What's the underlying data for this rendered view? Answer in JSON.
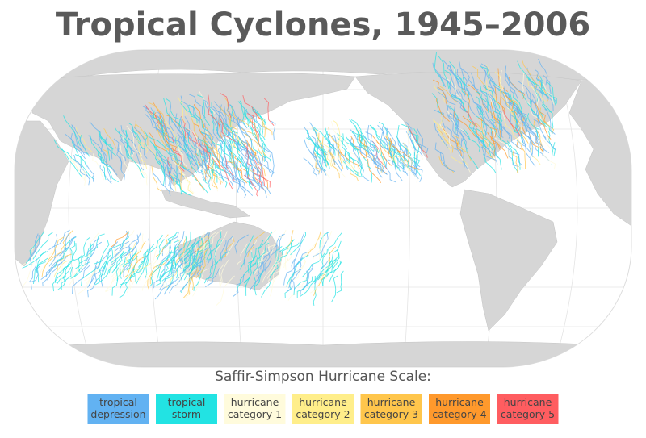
{
  "header": {
    "title": "Tropical Cyclones, 1945–2006"
  },
  "legend": {
    "title": "Saffir-Simpson Hurricane Scale:",
    "items": [
      {
        "lines": [
          "tropical",
          "depression"
        ],
        "color": "#62b2f2"
      },
      {
        "lines": [
          "tropical",
          "storm"
        ],
        "color": "#22e3e3"
      },
      {
        "lines": [
          "hurricane",
          "category 1"
        ],
        "color": "#fffbdc"
      },
      {
        "lines": [
          "hurricane",
          "category 2"
        ],
        "color": "#ffee8a"
      },
      {
        "lines": [
          "hurricane",
          "category 3"
        ],
        "color": "#ffc64c"
      },
      {
        "lines": [
          "hurricane",
          "category 4"
        ],
        "color": "#ff992c"
      },
      {
        "lines": [
          "hurricane",
          "category 5"
        ],
        "color": "#ff5d60"
      }
    ]
  }
}
